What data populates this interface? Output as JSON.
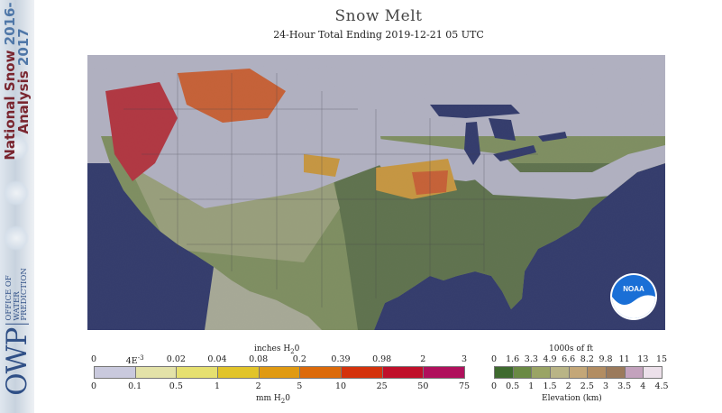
{
  "page": {
    "title": "Snow Melt",
    "subtitle": "24-Hour Total Ending 2019-12-21 05 UTC"
  },
  "banner": {
    "line1": "National Snow",
    "line1_year": "2016-",
    "line2": "Analysis",
    "line2_year": "2017",
    "owp_mark": "OWP",
    "owp_words": [
      "OFFICE OF",
      "WATER",
      "PREDICTION"
    ]
  },
  "map": {
    "noaa_logo_text": "NOAA",
    "colors": {
      "ocean": "#0b1760",
      "no_melt": "#c8c8e0",
      "no_snow_low": "#4d6a33",
      "no_snow_mid": "#7c9450",
      "no_snow_high": "#a3ad78",
      "melt_low": "#e8a020",
      "melt_mid": "#e85010",
      "melt_high": "#c81020",
      "outside": "#b9bca0"
    }
  },
  "melt_legend": {
    "top_caption": "inches H",
    "top_caption_sub": "2",
    "top_caption_end": "0",
    "bottom_caption": "mm H",
    "bottom_caption_sub": "2",
    "bottom_caption_end": "0",
    "inch_labels": [
      "0",
      "4E",
      "0.02",
      "0.04",
      "0.08",
      "0.2",
      "0.39",
      "0.98",
      "2",
      "3"
    ],
    "inch_label_4e_exp": "-3",
    "mm_labels": [
      "0",
      "0.1",
      "0.5",
      "1",
      "2",
      "5",
      "10",
      "25",
      "50",
      "75"
    ],
    "colors": [
      "#c9c9dd",
      "#e3e2a8",
      "#e6e070",
      "#e2c42a",
      "#e09a12",
      "#dc6a0a",
      "#d4320c",
      "#c0102a",
      "#b0105c"
    ]
  },
  "elev_legend": {
    "top_caption": "1000s of ft",
    "bottom_caption": "Elevation (km)",
    "ft_labels": [
      "0",
      "1.6",
      "3.3",
      "4.9",
      "6.6",
      "8.2",
      "9.8",
      "11",
      "13",
      "15"
    ],
    "km_labels": [
      "0",
      "0.5",
      "1",
      "1.5",
      "2",
      "2.5",
      "3",
      "3.5",
      "4",
      "4.5"
    ],
    "colors": [
      "#3e6a2e",
      "#6a8a44",
      "#9aa465",
      "#b9b486",
      "#c4a778",
      "#b28d62",
      "#9b7a5c",
      "#c3a2bd",
      "#ece0ea"
    ]
  }
}
